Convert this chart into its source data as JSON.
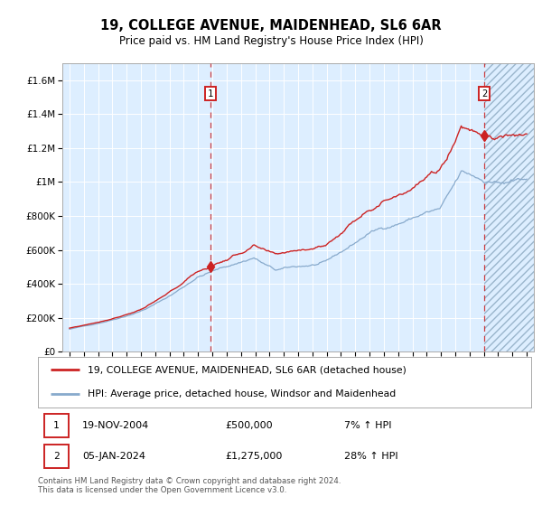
{
  "title": "19, COLLEGE AVENUE, MAIDENHEAD, SL6 6AR",
  "subtitle": "Price paid vs. HM Land Registry's House Price Index (HPI)",
  "bg_color": "#ddeeff",
  "line1_color": "#cc2222",
  "line2_color": "#88aacc",
  "marker_color": "#cc2222",
  "vline_color": "#cc2222",
  "sale1_year": 2004.88,
  "sale1_value": 500000,
  "sale2_year": 2024.02,
  "sale2_value": 1275000,
  "ylim": [
    0,
    1700000
  ],
  "xlim_start": 1994.5,
  "xlim_end": 2027.5,
  "legend_line1": "19, COLLEGE AVENUE, MAIDENHEAD, SL6 6AR (detached house)",
  "legend_line2": "HPI: Average price, detached house, Windsor and Maidenhead",
  "note1_label": "1",
  "note1_date": "19-NOV-2004",
  "note1_price": "£500,000",
  "note1_hpi": "7% ↑ HPI",
  "note2_label": "2",
  "note2_date": "05-JAN-2024",
  "note2_price": "£1,275,000",
  "note2_hpi": "28% ↑ HPI",
  "footer": "Contains HM Land Registry data © Crown copyright and database right 2024.\nThis data is licensed under the Open Government Licence v3.0.",
  "yticks": [
    0,
    200000,
    400000,
    600000,
    800000,
    1000000,
    1200000,
    1400000,
    1600000
  ],
  "ytick_labels": [
    "£0",
    "£200K",
    "£400K",
    "£600K",
    "£800K",
    "£1M",
    "£1.2M",
    "£1.4M",
    "£1.6M"
  ],
  "xticks": [
    1995,
    1996,
    1997,
    1998,
    1999,
    2000,
    2001,
    2002,
    2003,
    2004,
    2005,
    2006,
    2007,
    2008,
    2009,
    2010,
    2011,
    2012,
    2013,
    2014,
    2015,
    2016,
    2017,
    2018,
    2019,
    2020,
    2021,
    2022,
    2023,
    2024,
    2025,
    2026,
    2027
  ]
}
